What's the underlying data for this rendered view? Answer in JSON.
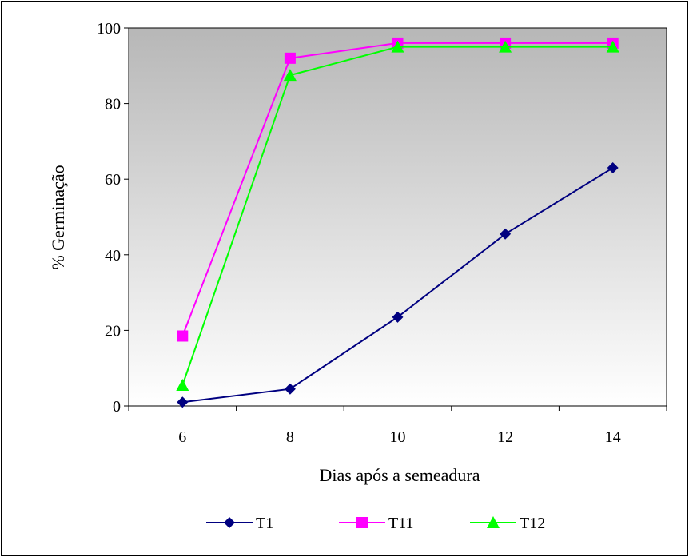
{
  "chart_data": {
    "type": "line",
    "title": "",
    "xlabel": "Dias após a semeadura",
    "ylabel": "% Germinação",
    "categories": [
      "6",
      "8",
      "10",
      "12",
      "14"
    ],
    "x": [
      6,
      8,
      10,
      12,
      14
    ],
    "ylim": [
      0,
      100
    ],
    "yticks": [
      0,
      20,
      40,
      60,
      80,
      100
    ],
    "grid": false,
    "legend_position": "bottom",
    "series": [
      {
        "name": "T1",
        "values": [
          1,
          4.5,
          23.5,
          45.5,
          63
        ],
        "color": "#000080",
        "marker": "diamond"
      },
      {
        "name": "T11",
        "values": [
          18.5,
          92,
          96,
          96,
          96
        ],
        "color": "#ff00ff",
        "marker": "square"
      },
      {
        "name": "T12",
        "values": [
          5.5,
          87.5,
          95,
          95,
          95
        ],
        "color": "#00ff00",
        "marker": "triangle"
      }
    ],
    "plot_background": "gradient gray to white (top to bottom)"
  }
}
